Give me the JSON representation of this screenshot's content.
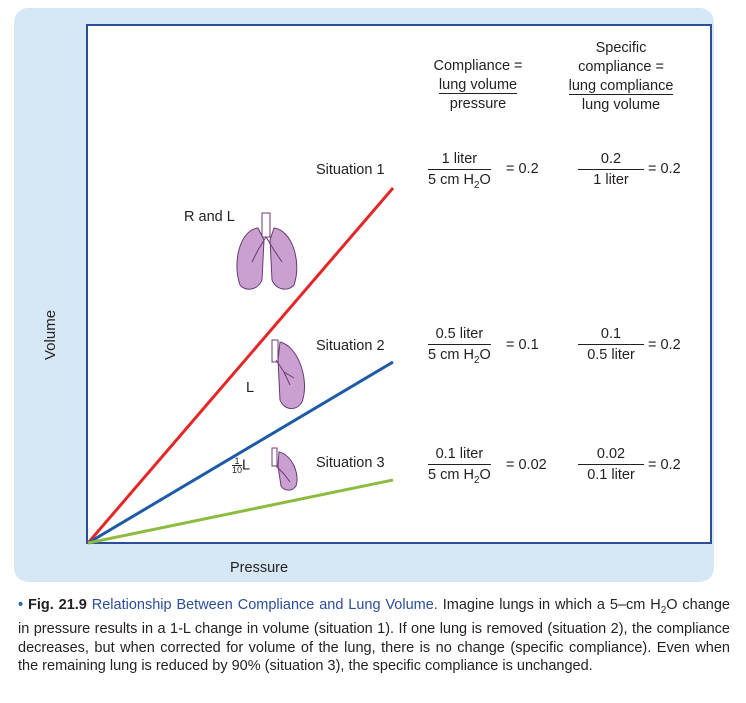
{
  "axes": {
    "y_label": "Volume",
    "x_label": "Pressure"
  },
  "headers": {
    "compliance_line1": "Compliance =",
    "compliance_num": "lung volume",
    "compliance_den": "pressure",
    "specific_line1": "Specific",
    "specific_line2": "compliance =",
    "specific_num": "lung compliance",
    "specific_den": "lung volume"
  },
  "colors": {
    "situation1": "#e32726",
    "situation2": "#1f5aa6",
    "situation3": "#8dbb3f",
    "lung": "#c9a0d0"
  },
  "situations": [
    {
      "label": "Situation 1",
      "lung_label": "R and L",
      "comp_num": "1 liter",
      "comp_den": "5 cm H",
      "comp_den_sub": "2",
      "comp_den_tail": "O",
      "comp_val": "= 0.2",
      "spec_num": "0.2",
      "spec_den": "1 liter",
      "spec_val": "= 0.2"
    },
    {
      "label": "Situation 2",
      "lung_label": "L",
      "comp_num": "0.5 liter",
      "comp_den": "5 cm H",
      "comp_den_sub": "2",
      "comp_den_tail": "O",
      "comp_val": "= 0.1",
      "spec_num": "0.1",
      "spec_den": "0.5 liter",
      "spec_val": "= 0.2"
    },
    {
      "label": "Situation 3",
      "lung_label_num": "1",
      "lung_label_den": "10",
      "lung_label_tail": "L",
      "comp_num": "0.1 liter",
      "comp_den": "5 cm H",
      "comp_den_sub": "2",
      "comp_den_tail": "O",
      "comp_val": "= 0.02",
      "spec_num": "0.02",
      "spec_den": "0.1 liter",
      "spec_val": "= 0.2"
    }
  ],
  "caption": {
    "bullet": "•",
    "fig_number": "Fig. 21.9",
    "title": "Relationship Between Compliance and Lung Volume.",
    "text_a": "Imagine lungs in which a 5–cm H",
    "text_sub": "2",
    "text_b": "O change in pressure results in a 1-L change in volume (situation 1). If one lung is removed (situation 2), the compliance decreases, but when corrected for volume of the lung, there is no change (specific compliance). Even when the remaining lung is reduced by 90% (situation 3), the specific compliance is unchanged."
  }
}
